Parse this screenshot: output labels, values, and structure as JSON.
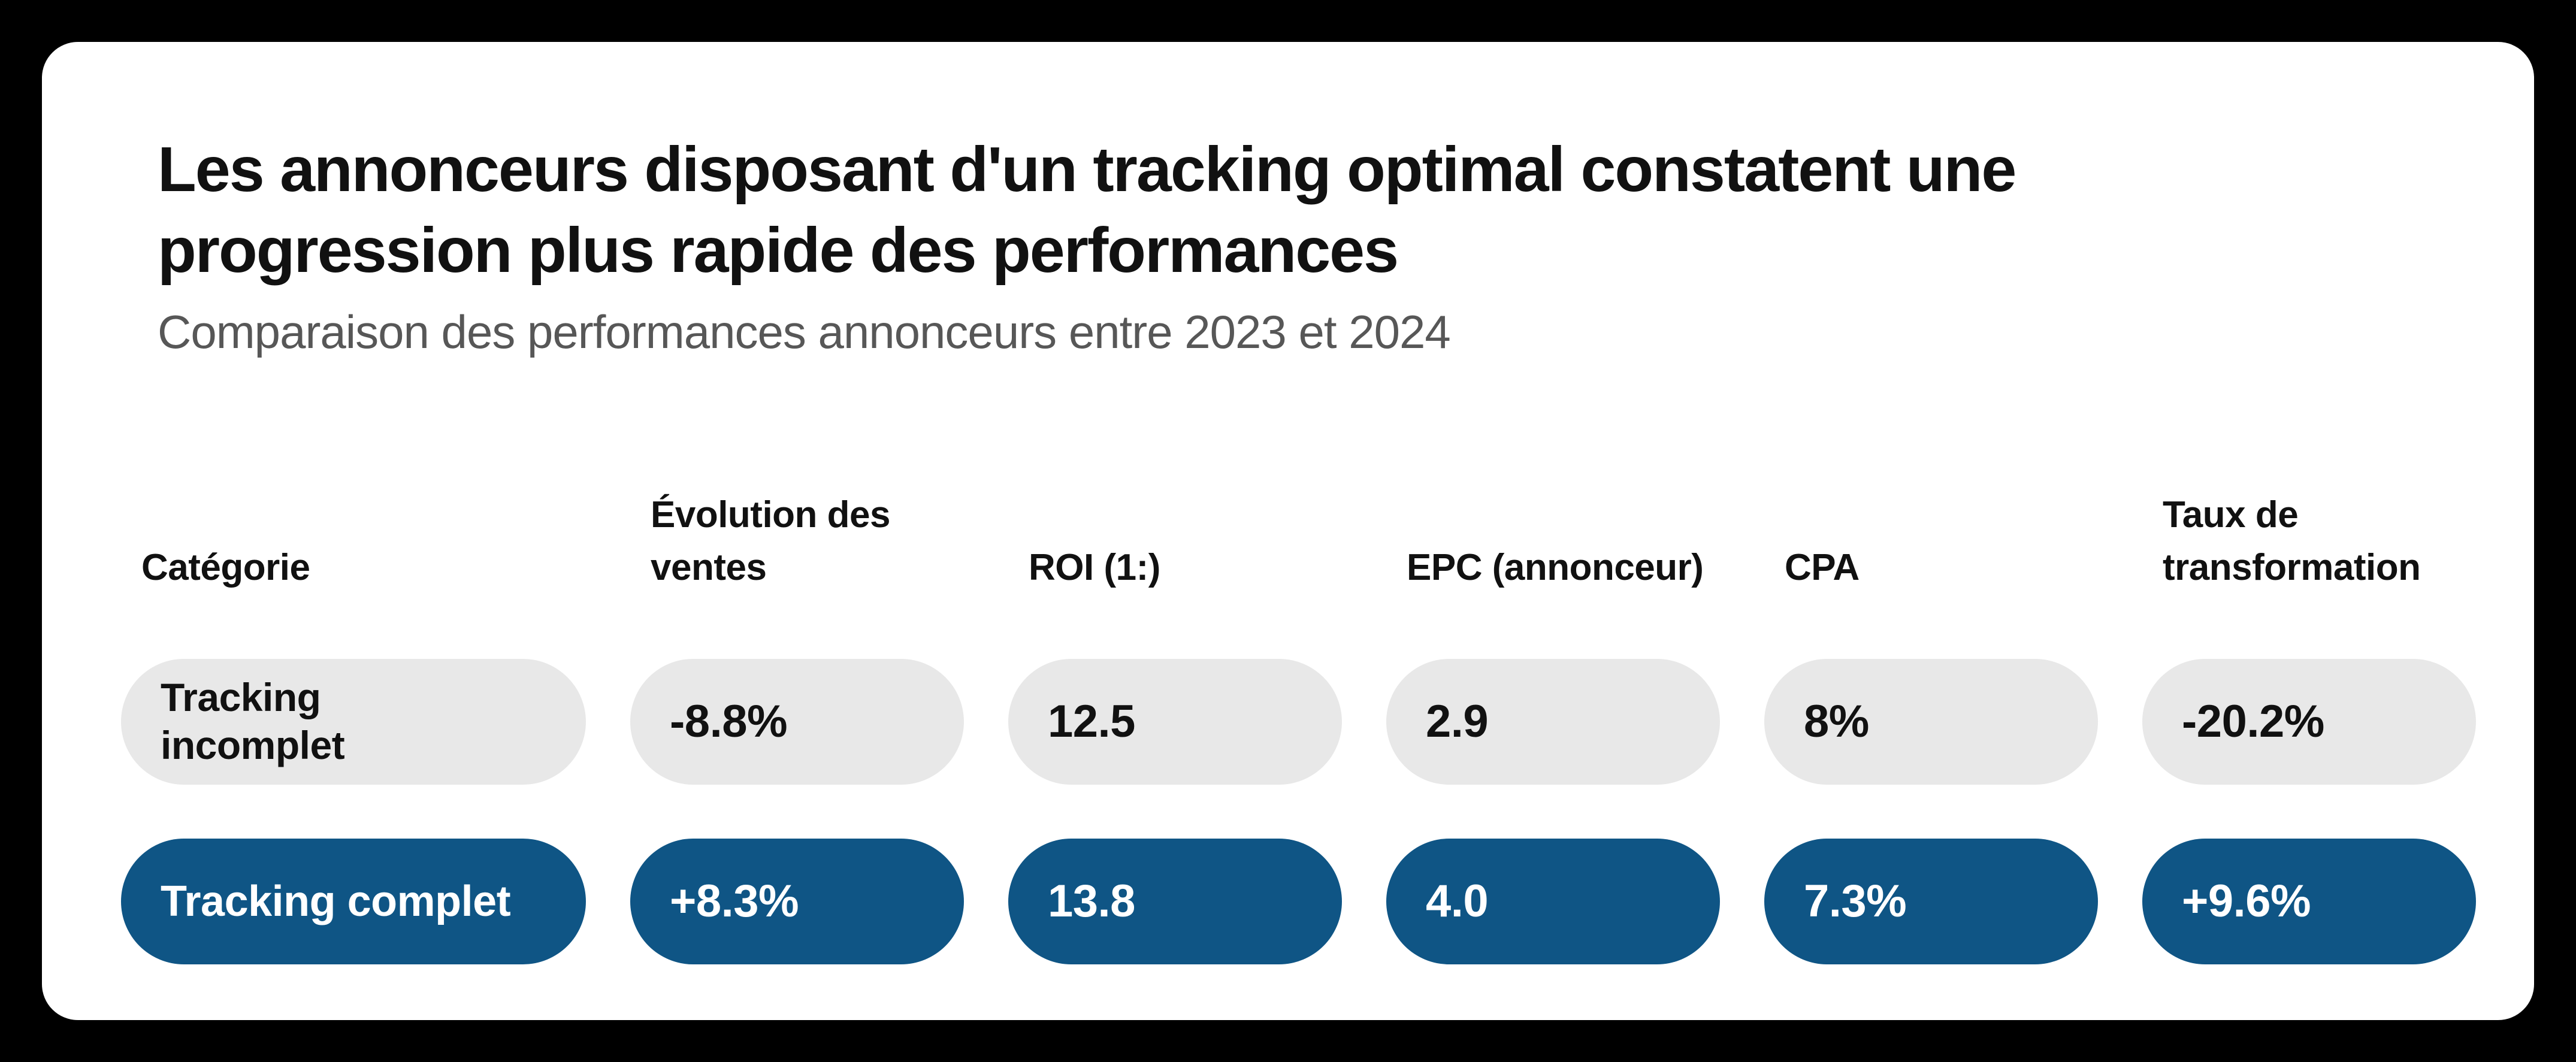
{
  "colors": {
    "page_background": "#000000",
    "card_background": "#ffffff",
    "pill_gray": "#e8e8e8",
    "pill_blue": "#0f5585",
    "pill_blue_text": "#ffffff",
    "heading_text": "#111111",
    "subtitle_text": "#575757"
  },
  "header": {
    "title_lines": [
      "Les annonceurs disposant d'un tracking optimal constatent une",
      "progression plus rapide des performances"
    ],
    "subtitle": "Comparaison des performances annonceurs entre 2023 et 2024"
  },
  "table": {
    "columns": [
      {
        "label": "Catégorie"
      },
      {
        "label": "Évolution des ventes"
      },
      {
        "label": "ROI (1:)"
      },
      {
        "label": "EPC (annonceur)"
      },
      {
        "label": "CPA"
      },
      {
        "label": "Taux de transformation"
      }
    ],
    "rows": [
      {
        "category": "Tracking incomplet",
        "variant": "gray",
        "values": [
          "-8.8%",
          "12.5",
          "2.9",
          "8%",
          "-20.2%"
        ]
      },
      {
        "category": "Tracking complet",
        "variant": "blue",
        "values": [
          "+8.3%",
          "13.8",
          "4.0",
          "7.3%",
          "+9.6%"
        ]
      }
    ]
  },
  "chart_data": {
    "type": "table",
    "title": "Les annonceurs disposant d'un tracking optimal constatent une progression plus rapide des performances",
    "subtitle": "Comparaison des performances annonceurs entre 2023 et 2024",
    "columns": [
      "Catégorie",
      "Évolution des ventes",
      "ROI (1:)",
      "EPC (annonceur)",
      "CPA",
      "Taux de transformation"
    ],
    "rows": [
      [
        "Tracking incomplet",
        "-8.8%",
        "12.5",
        "2.9",
        "8%",
        "-20.2%"
      ],
      [
        "Tracking complet",
        "+8.3%",
        "13.8",
        "4.0",
        "7.3%",
        "+9.6%"
      ]
    ],
    "layout_hints": {
      "row_styles": [
        "gray-pill",
        "blue-pill"
      ],
      "grid": "off",
      "legend": "none"
    }
  }
}
